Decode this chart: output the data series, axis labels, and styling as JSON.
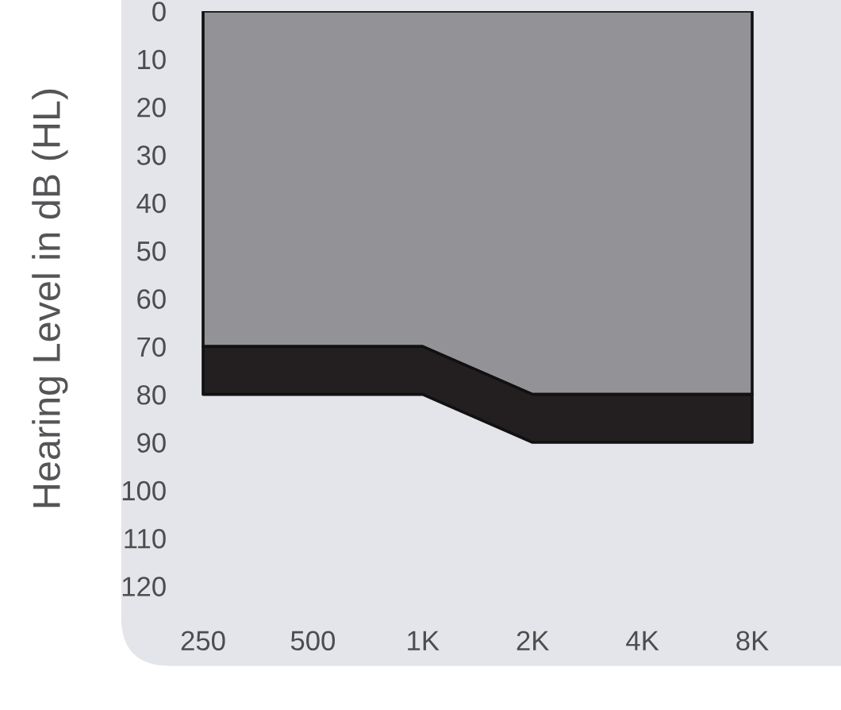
{
  "chart_data": {
    "type": "area",
    "ylabel": "Hearing Level in dB (HL)",
    "categories": [
      "250",
      "500",
      "1K",
      "2K",
      "4K",
      "8K"
    ],
    "stacked": true,
    "series": [
      {
        "color": "#939397",
        "values": [
          70,
          70,
          70,
          80,
          80,
          80
        ]
      },
      {
        "color": "#231f20",
        "values": [
          10,
          10,
          10,
          10,
          10,
          10
        ]
      }
    ],
    "ylim": [
      120,
      0
    ],
    "yticks": [
      0,
      10,
      20,
      30,
      40,
      50,
      60,
      70,
      80,
      90,
      100,
      110,
      120
    ],
    "grid": false,
    "legend": false
  }
}
